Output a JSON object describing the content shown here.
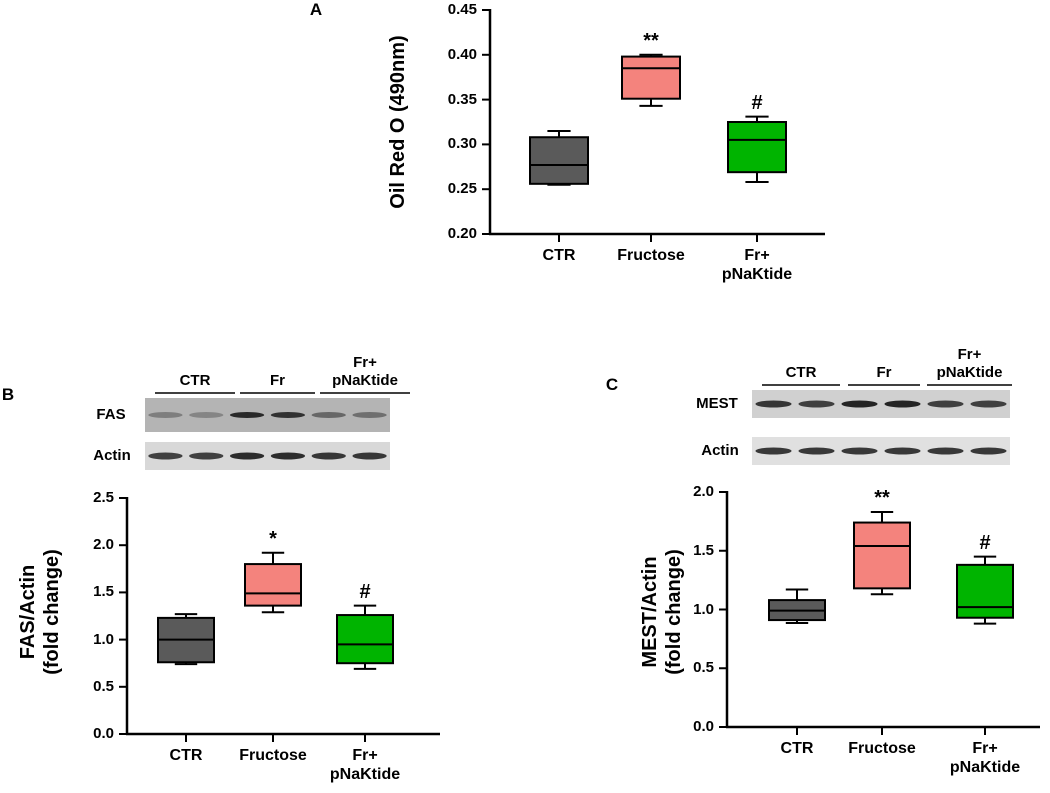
{
  "chart_data": [
    {
      "type": "box",
      "panel": "A",
      "ylabel": "Oil Red O (490nm)",
      "categories": [
        "CTR",
        "Fructose",
        "Fr+\npNaKtide"
      ],
      "boxes": [
        {
          "min": 0.255,
          "q1": 0.256,
          "median": 0.277,
          "q3": 0.308,
          "max": 0.315,
          "color": "#5a5a5a"
        },
        {
          "min": 0.343,
          "q1": 0.351,
          "median": 0.385,
          "q3": 0.398,
          "max": 0.4,
          "color": "#f4837d",
          "annotation": "**"
        },
        {
          "min": 0.258,
          "q1": 0.269,
          "median": 0.305,
          "q3": 0.325,
          "max": 0.331,
          "color": "#00b400",
          "annotation": "#"
        }
      ],
      "ylim": [
        0.2,
        0.45
      ],
      "yticks": [
        {
          "value": 0.2,
          "label": "0.20"
        },
        0.25,
        {
          "value": 0.3,
          "label": "0.30"
        },
        0.35,
        {
          "value": 0.4,
          "label": "0.40"
        },
        0.45
      ]
    },
    {
      "type": "box",
      "panel": "B",
      "ylabel": "FAS/Actin\n(fold change)",
      "categories": [
        "CTR",
        "Fructose",
        "Fr+\npNaKtide"
      ],
      "boxes": [
        {
          "min": 0.74,
          "q1": 0.76,
          "median": 1.0,
          "q3": 1.23,
          "max": 1.27,
          "color": "#5a5a5a"
        },
        {
          "min": 1.29,
          "q1": 1.36,
          "median": 1.49,
          "q3": 1.8,
          "max": 1.92,
          "color": "#f4837d",
          "annotation": "*"
        },
        {
          "min": 0.69,
          "q1": 0.75,
          "median": 0.95,
          "q3": 1.26,
          "max": 1.36,
          "color": "#00b400",
          "annotation": "#"
        }
      ],
      "ylim": [
        0,
        2.5
      ],
      "yticks": [
        {
          "value": 0,
          "label": "0.0"
        },
        0.5,
        {
          "value": 1,
          "label": "1.0"
        },
        1.5,
        {
          "value": 2,
          "label": "2.0"
        },
        2.5
      ]
    },
    {
      "type": "box",
      "panel": "C",
      "ylabel": "MEST/Actin\n(fold change)",
      "categories": [
        "CTR",
        "Fructose",
        "Fr+\npNaKtide"
      ],
      "boxes": [
        {
          "min": 0.885,
          "q1": 0.91,
          "median": 0.99,
          "q3": 1.08,
          "max": 1.17,
          "color": "#5a5a5a"
        },
        {
          "min": 1.13,
          "q1": 1.18,
          "median": 1.54,
          "q3": 1.74,
          "max": 1.83,
          "color": "#f4837d",
          "annotation": "**"
        },
        {
          "min": 0.88,
          "q1": 0.93,
          "median": 1.02,
          "q3": 1.38,
          "max": 1.45,
          "color": "#00b400",
          "annotation": "#"
        }
      ],
      "ylim": [
        0,
        2
      ],
      "yticks": [
        {
          "value": 0,
          "label": "0.0"
        },
        0.5,
        {
          "value": 1,
          "label": "1.0"
        },
        1.5,
        {
          "value": 2,
          "label": "2.0"
        }
      ]
    }
  ],
  "blots": [
    {
      "groups": [
        "CTR",
        "Fr",
        "Fr+\npNaKtide"
      ],
      "rows": [
        "FAS",
        "Actin"
      ]
    },
    {
      "groups": [
        "CTR",
        "Fr",
        "Fr+\npNaKtide"
      ],
      "rows": [
        "MEST",
        "Actin"
      ]
    }
  ]
}
